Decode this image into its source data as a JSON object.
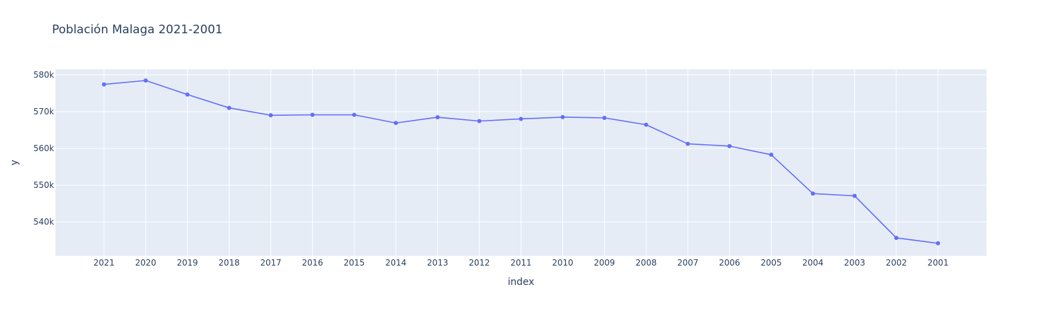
{
  "chart_data": {
    "type": "line",
    "title": "Población Malaga 2021-2001",
    "xlabel": "index",
    "ylabel": "y",
    "categories": [
      "2021",
      "2020",
      "2019",
      "2018",
      "2017",
      "2016",
      "2015",
      "2014",
      "2013",
      "2012",
      "2011",
      "2010",
      "2009",
      "2008",
      "2007",
      "2006",
      "2005",
      "2004",
      "2003",
      "2002",
      "2001"
    ],
    "values": [
      577405,
      578460,
      574654,
      571026,
      569009,
      569130,
      569130,
      566913,
      568479,
      567433,
      568030,
      568507,
      568305,
      566447,
      561250,
      560631,
      558287,
      547731,
      547105,
      535686,
      534207
    ],
    "y_ticks": [
      540000,
      550000,
      560000,
      570000,
      580000
    ],
    "y_tick_labels": [
      "540k",
      "550k",
      "560k",
      "570k",
      "580k"
    ],
    "ylim": [
      530800,
      581500
    ],
    "grid": true,
    "colors": {
      "line": "#636efa",
      "plot_bg": "#e5ecf6",
      "grid": "#ffffff",
      "text": "#2a3f5f"
    }
  }
}
